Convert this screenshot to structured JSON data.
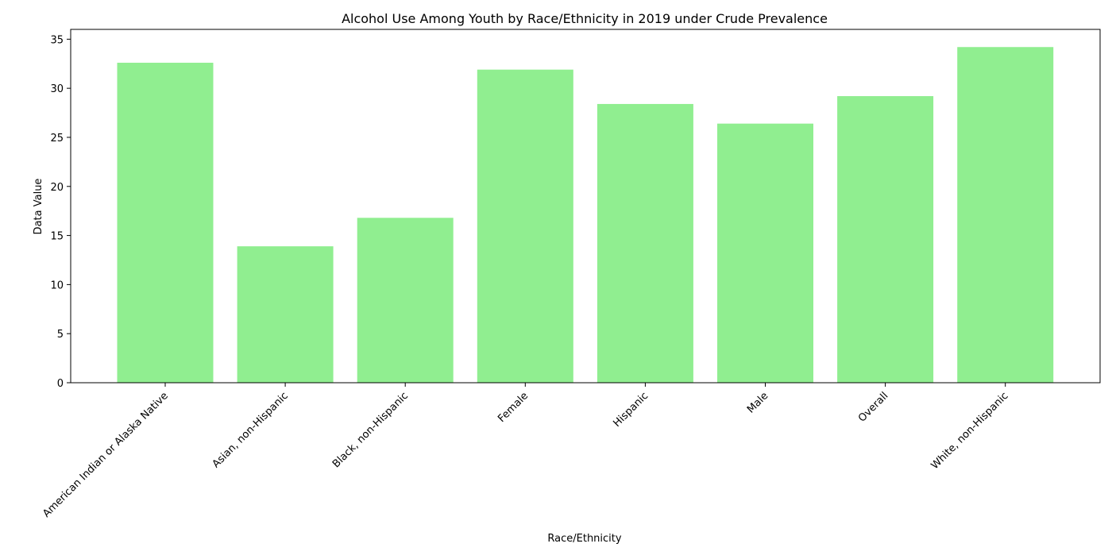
{
  "chart_data": {
    "type": "bar",
    "title": "Alcohol Use Among Youth by Race/Ethnicity in 2019 under Crude Prevalence",
    "xlabel": "Race/Ethnicity",
    "ylabel": "Data Value",
    "categories": [
      "American Indian or Alaska Native",
      "Asian, non-Hispanic",
      "Black, non-Hispanic",
      "Female",
      "Hispanic",
      "Male",
      "Overall",
      "White, non-Hispanic"
    ],
    "values": [
      32.6,
      13.9,
      16.8,
      31.9,
      28.4,
      26.4,
      29.2,
      34.2
    ],
    "ylim": [
      0,
      36
    ],
    "yticks": [
      "0",
      "5",
      "10",
      "15",
      "20",
      "25",
      "30",
      "35"
    ],
    "grid": false,
    "legend": "none",
    "bar_color": "#90ee90"
  }
}
